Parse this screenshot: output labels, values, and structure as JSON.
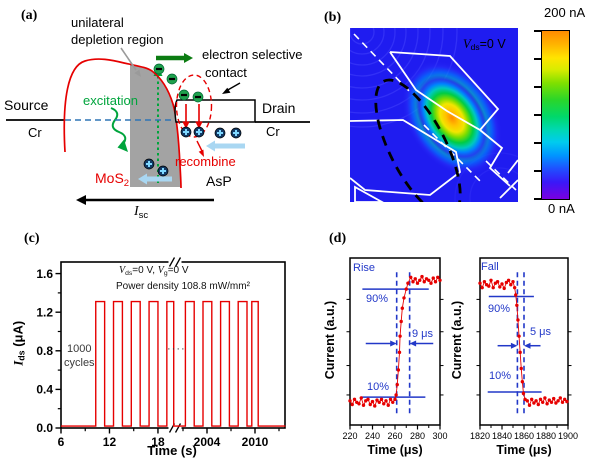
{
  "figure": {
    "background": "#ffffff"
  },
  "colors": {
    "data_red": "#e60000",
    "annotation_blue": "#2238c8",
    "fermi_blue": "#2e75b6",
    "excitation_green": "#00a43c",
    "electron_flow_green": "#0c7c12",
    "depletion_gray": "#a3a3a3",
    "electron_fill": "#1fa24e",
    "hole_fill": "#123a66",
    "hole_plus": "#7fd8ff",
    "flow_arrow_blue": "#a9d7f2",
    "map_background": "#1f1cf0"
  },
  "panels": {
    "a": {
      "label": "(a)",
      "unilateral_line1": "unilateral",
      "unilateral_line2": "depletion region",
      "contact_line1": "electron selective",
      "contact_line2": "contact",
      "source": "Source",
      "drain": "Drain",
      "cr_left": "Cr",
      "cr_right": "Cr",
      "excitation": "excitation",
      "recombine": "recombine",
      "mos2_main": "MoS",
      "mos2_sub": "2",
      "asp": "AsP",
      "isc_main": "I",
      "isc_sub": "sc"
    },
    "b": {
      "label": "(b)",
      "cbar_max": "200 nA",
      "cbar_min": "0 nA",
      "v_main": "V",
      "v_sub": "ds",
      "v_eq": "=0 V"
    },
    "c": {
      "label": "(c)",
      "cond_v1": "V",
      "cond_v1_sub": "ds",
      "cond_mid": "=0 V, ",
      "cond_v2": "V",
      "cond_v2_sub": "g",
      "cond_end": "=0 V",
      "power": "Power density 108.8 mW/mm²",
      "cycles_line1": "1000",
      "cycles_line2": "cycles",
      "dots": "····",
      "ylabel_main": "I",
      "ylabel_sub": "ds",
      "ylabel_rest": " (μA)"
    },
    "d": {
      "label": "(d)"
    }
  },
  "chart_data": [
    {
      "id": "cycling-stability",
      "type": "line",
      "xlabel": "Time (s)",
      "ylabel": "Ids (μA)",
      "x_segments": [
        [
          6,
          20
        ],
        [
          2000,
          2014
        ]
      ],
      "x_break_after": 20,
      "x_major_ticks": [
        6,
        12,
        18,
        2004,
        2010
      ],
      "x_minor_ticks": [
        9,
        15,
        2001,
        2007,
        2013
      ],
      "y_major_ticks": [
        0.0,
        0.4,
        0.8,
        1.2,
        1.6
      ],
      "y_minor_ticks": [
        0.2,
        0.6,
        1.0,
        1.4
      ],
      "ylim": [
        0,
        1.72
      ],
      "pulse_low": 0.02,
      "pulse_high": 1.31,
      "pulses": [
        [
          10.3,
          11.4
        ],
        [
          12.5,
          13.6
        ],
        [
          14.7,
          15.8
        ],
        [
          16.9,
          18.0
        ],
        [
          19.1,
          19.95
        ],
        [
          2001.3,
          2002.4
        ],
        [
          2003.5,
          2004.6
        ],
        [
          2005.7,
          2006.8
        ],
        [
          2007.9,
          2009.0
        ],
        [
          2009.6,
          2010.4
        ]
      ],
      "series_color": "#e60000",
      "annotations": {
        "conditions": "Vds=0 V, Vg=0 V",
        "power_density": "Power density 108.8 mW/mm²",
        "cycles_note": "1000 cycles"
      }
    },
    {
      "id": "rise-edge",
      "type": "scatter",
      "corner_label": "Rise",
      "xlabel": "Time (μs)",
      "ylabel": "Current (a.u.)",
      "xlim": [
        220,
        300
      ],
      "x_major_ticks": [
        220,
        240,
        260,
        280,
        300
      ],
      "x_minor_ticks": [
        230,
        250,
        270,
        290
      ],
      "y_side_ticks": [
        0.15,
        0.35,
        0.58,
        0.8
      ],
      "dash_x": [
        261.5,
        273
      ],
      "rise_time_us": 9,
      "time_label": "9 μs",
      "level_90": {
        "v": 0.87,
        "x0": 231,
        "x1": 290,
        "label": "90%"
      },
      "level_10": {
        "v": 0.135,
        "x0": 230,
        "x1": 287,
        "label": "10%"
      },
      "arrows": {
        "v": 0.5,
        "left_from": 234,
        "right_from": 294
      },
      "color": "#e60000",
      "points": [
        [
          220,
          0.11
        ],
        [
          222,
          0.085
        ],
        [
          224,
          0.12
        ],
        [
          226,
          0.1
        ],
        [
          228,
          0.09
        ],
        [
          230,
          0.13
        ],
        [
          232,
          0.08
        ],
        [
          234,
          0.11
        ],
        [
          236,
          0.12
        ],
        [
          238,
          0.085
        ],
        [
          240,
          0.105
        ],
        [
          242,
          0.075
        ],
        [
          244,
          0.115
        ],
        [
          246,
          0.1
        ],
        [
          248,
          0.12
        ],
        [
          250,
          0.09
        ],
        [
          252,
          0.11
        ],
        [
          254,
          0.08
        ],
        [
          256,
          0.12
        ],
        [
          258,
          0.1
        ],
        [
          260,
          0.12
        ],
        [
          261,
          0.15
        ],
        [
          262,
          0.22
        ],
        [
          263,
          0.32
        ],
        [
          264,
          0.44
        ],
        [
          264.5,
          0.55
        ],
        [
          265.5,
          0.65
        ],
        [
          266.5,
          0.74
        ],
        [
          268,
          0.81
        ],
        [
          270,
          0.87
        ],
        [
          271.5,
          0.91
        ],
        [
          274,
          0.95
        ],
        [
          276,
          0.92
        ],
        [
          278,
          0.94
        ],
        [
          280,
          0.91
        ],
        [
          282,
          0.93
        ],
        [
          284,
          0.955
        ],
        [
          286,
          0.92
        ],
        [
          288,
          0.94
        ],
        [
          290,
          0.93
        ],
        [
          292,
          0.91
        ],
        [
          294,
          0.945
        ],
        [
          296,
          0.92
        ],
        [
          298,
          0.95
        ],
        [
          300,
          0.93
        ]
      ]
    },
    {
      "id": "fall-edge",
      "type": "scatter",
      "corner_label": "Fall",
      "xlabel": "Time (μs)",
      "ylabel": "Current (a.u.)",
      "xlim": [
        1820,
        1900
      ],
      "x_major_ticks": [
        1820,
        1840,
        1860,
        1880,
        1900
      ],
      "x_minor_ticks": [
        1830,
        1850,
        1870,
        1890
      ],
      "y_side_ticks": [
        0.15,
        0.35,
        0.58,
        0.8
      ],
      "dash_x": [
        1854,
        1860
      ],
      "fall_time_us": 5,
      "time_label": "5 μs",
      "level_90": {
        "v": 0.82,
        "x0": 1828,
        "x1": 1869,
        "label": "90%"
      },
      "level_10": {
        "v": 0.17,
        "x0": 1827,
        "x1": 1876,
        "label": "10%"
      },
      "arrows": {
        "v": 0.485,
        "left_from": 1836,
        "right_from": 1875
      },
      "color": "#e60000",
      "points": [
        [
          1820,
          0.91
        ],
        [
          1822,
          0.88
        ],
        [
          1824,
          0.92
        ],
        [
          1826,
          0.9
        ],
        [
          1828,
          0.89
        ],
        [
          1830,
          0.93
        ],
        [
          1832,
          0.88
        ],
        [
          1834,
          0.91
        ],
        [
          1836,
          0.92
        ],
        [
          1838,
          0.885
        ],
        [
          1840,
          0.905
        ],
        [
          1842,
          0.875
        ],
        [
          1844,
          0.915
        ],
        [
          1846,
          0.93
        ],
        [
          1848,
          0.9
        ],
        [
          1850,
          0.92
        ],
        [
          1851.5,
          0.88
        ],
        [
          1852.5,
          0.83
        ],
        [
          1853.5,
          0.76
        ],
        [
          1854.5,
          0.66
        ],
        [
          1855.5,
          0.55
        ],
        [
          1856.5,
          0.44
        ],
        [
          1857.5,
          0.33
        ],
        [
          1858.5,
          0.24
        ],
        [
          1859.5,
          0.16
        ],
        [
          1861,
          0.12
        ],
        [
          1863,
          0.11
        ],
        [
          1865,
          0.08
        ],
        [
          1867,
          0.12
        ],
        [
          1869,
          0.095
        ],
        [
          1871,
          0.11
        ],
        [
          1873,
          0.085
        ],
        [
          1875,
          0.12
        ],
        [
          1877,
          0.1
        ],
        [
          1879,
          0.13
        ],
        [
          1881,
          0.09
        ],
        [
          1883,
          0.115
        ],
        [
          1885,
          0.1
        ],
        [
          1887,
          0.125
        ],
        [
          1889,
          0.095
        ],
        [
          1891,
          0.11
        ],
        [
          1893,
          0.13
        ],
        [
          1895,
          0.1
        ],
        [
          1897,
          0.12
        ],
        [
          1899,
          0.105
        ]
      ]
    }
  ]
}
